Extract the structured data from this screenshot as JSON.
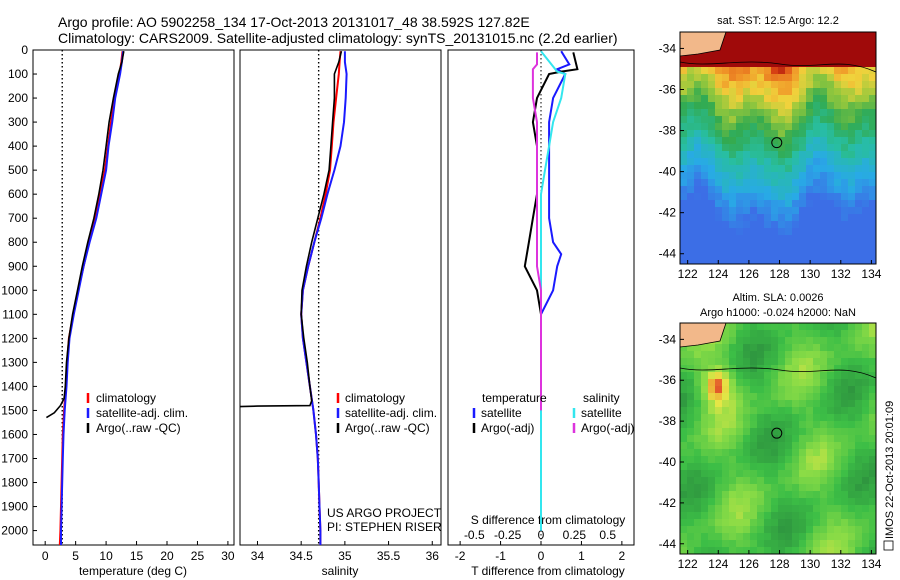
{
  "titles": {
    "line1": "Argo profile: AO 5902258_134 17-Oct-2013 20131017_48 38.592S 127.82E",
    "line2": "Climatology: CARS2009. Satellite-adjusted climatology: synTS_20131015.nc (2.2d earlier)"
  },
  "side_label": "IMOS 22-Oct-2013 20:01:09",
  "colors": {
    "climatology": "#ff0000",
    "satellite": "#1a1aff",
    "argo": "#000000",
    "salinity_sat": "#33e6ee",
    "salinity_argo": "#dd33dd"
  },
  "chart_data": [
    {
      "type": "line",
      "id": "temperature",
      "xlabel": "temperature (deg C)",
      "ylabel": "depth",
      "xlim": [
        -2,
        31
      ],
      "ylim": [
        2060,
        0
      ],
      "x_ticks": [
        0,
        5,
        10,
        15,
        20,
        25,
        30
      ],
      "y_ticks": [
        0,
        100,
        200,
        300,
        400,
        500,
        600,
        700,
        800,
        900,
        1000,
        1100,
        1200,
        1300,
        1400,
        1500,
        1600,
        1700,
        1800,
        1900,
        2000
      ],
      "reference_line": 2.8,
      "legend": [
        "climatology",
        "satellite-adj. clim.",
        "Argo(..raw -QC)"
      ],
      "series": [
        {
          "name": "climatology",
          "color": "#ff0000",
          "points": [
            [
              12.7,
              5
            ],
            [
              12.5,
              50
            ],
            [
              12.2,
              100
            ],
            [
              11.4,
              200
            ],
            [
              10.8,
              300
            ],
            [
              10.3,
              400
            ],
            [
              9.8,
              500
            ],
            [
              9.0,
              600
            ],
            [
              8.2,
              700
            ],
            [
              7.2,
              800
            ],
            [
              6.3,
              900
            ],
            [
              5.4,
              1000
            ],
            [
              4.6,
              1100
            ],
            [
              3.9,
              1200
            ],
            [
              3.6,
              1300
            ],
            [
              3.4,
              1400
            ],
            [
              3.1,
              1500
            ],
            [
              2.9,
              1600
            ],
            [
              2.8,
              1700
            ],
            [
              2.7,
              1800
            ],
            [
              2.6,
              1900
            ],
            [
              2.5,
              2000
            ],
            [
              2.4,
              2060
            ]
          ]
        },
        {
          "name": "satellite",
          "color": "#1a1aff",
          "points": [
            [
              12.8,
              5
            ],
            [
              12.6,
              50
            ],
            [
              12.3,
              100
            ],
            [
              11.5,
              200
            ],
            [
              11.0,
              300
            ],
            [
              10.4,
              400
            ],
            [
              10.0,
              500
            ],
            [
              9.2,
              600
            ],
            [
              8.4,
              700
            ],
            [
              7.3,
              800
            ],
            [
              6.3,
              900
            ],
            [
              5.5,
              1000
            ],
            [
              4.7,
              1100
            ],
            [
              4.0,
              1200
            ],
            [
              3.7,
              1300
            ],
            [
              3.5,
              1400
            ],
            [
              3.2,
              1500
            ],
            [
              3.0,
              1600
            ],
            [
              2.9,
              1700
            ],
            [
              2.8,
              1800
            ],
            [
              2.7,
              1900
            ],
            [
              2.6,
              2000
            ],
            [
              2.6,
              2060
            ]
          ]
        },
        {
          "name": "argo",
          "color": "#000000",
          "points": [
            [
              12.9,
              5
            ],
            [
              12.6,
              50
            ],
            [
              12.0,
              100
            ],
            [
              11.2,
              200
            ],
            [
              10.5,
              300
            ],
            [
              10.0,
              400
            ],
            [
              9.5,
              500
            ],
            [
              8.8,
              600
            ],
            [
              8.0,
              700
            ],
            [
              7.0,
              800
            ],
            [
              6.1,
              900
            ],
            [
              5.3,
              1000
            ],
            [
              4.5,
              1100
            ],
            [
              3.9,
              1200
            ],
            [
              3.5,
              1300
            ],
            [
              3.3,
              1400
            ],
            [
              3.1,
              1450
            ],
            [
              2.5,
              1480
            ],
            [
              1.5,
              1510
            ],
            [
              0.2,
              1530
            ]
          ]
        }
      ]
    },
    {
      "type": "line",
      "id": "salinity",
      "xlabel": "salinity",
      "xlim": [
        33.8,
        36.1
      ],
      "ylim": [
        2060,
        0
      ],
      "x_ticks": [
        34,
        34.5,
        35,
        35.5,
        36
      ],
      "reference_line": 34.7,
      "legend": [
        "climatology",
        "satellite-adj. clim.",
        "Argo(..raw -QC)"
      ],
      "credits": [
        "US ARGO PROJECT",
        "PI: STEPHEN RISER"
      ],
      "series": [
        {
          "name": "climatology",
          "color": "#ff0000",
          "points": [
            [
              34.95,
              5
            ],
            [
              34.94,
              50
            ],
            [
              34.93,
              100
            ],
            [
              34.9,
              200
            ],
            [
              34.87,
              300
            ],
            [
              34.85,
              400
            ],
            [
              34.83,
              500
            ],
            [
              34.78,
              600
            ],
            [
              34.72,
              700
            ],
            [
              34.65,
              800
            ],
            [
              34.58,
              900
            ],
            [
              34.52,
              1000
            ],
            [
              34.5,
              1100
            ],
            [
              34.52,
              1200
            ],
            [
              34.56,
              1300
            ],
            [
              34.6,
              1400
            ],
            [
              34.64,
              1500
            ],
            [
              34.67,
              1600
            ],
            [
              34.69,
              1700
            ],
            [
              34.7,
              1800
            ],
            [
              34.71,
              1900
            ],
            [
              34.72,
              2000
            ],
            [
              34.72,
              2060
            ]
          ]
        },
        {
          "name": "satellite",
          "color": "#1a1aff",
          "points": [
            [
              35.0,
              5
            ],
            [
              35.0,
              50
            ],
            [
              35.02,
              100
            ],
            [
              35.01,
              200
            ],
            [
              34.99,
              300
            ],
            [
              34.95,
              400
            ],
            [
              34.88,
              500
            ],
            [
              34.8,
              600
            ],
            [
              34.73,
              700
            ],
            [
              34.65,
              800
            ],
            [
              34.58,
              900
            ],
            [
              34.52,
              1000
            ],
            [
              34.5,
              1100
            ],
            [
              34.52,
              1200
            ],
            [
              34.56,
              1300
            ],
            [
              34.6,
              1400
            ],
            [
              34.64,
              1500
            ],
            [
              34.67,
              1600
            ],
            [
              34.69,
              1700
            ],
            [
              34.7,
              1800
            ],
            [
              34.71,
              1900
            ],
            [
              34.72,
              2000
            ],
            [
              34.72,
              2060
            ]
          ]
        },
        {
          "name": "argo",
          "color": "#000000",
          "points": [
            [
              34.96,
              5
            ],
            [
              34.93,
              50
            ],
            [
              34.88,
              100
            ],
            [
              34.88,
              200
            ],
            [
              34.86,
              300
            ],
            [
              34.84,
              400
            ],
            [
              34.82,
              500
            ],
            [
              34.76,
              600
            ],
            [
              34.69,
              700
            ],
            [
              34.62,
              800
            ],
            [
              34.56,
              900
            ],
            [
              34.51,
              1000
            ],
            [
              34.5,
              1100
            ],
            [
              34.53,
              1200
            ],
            [
              34.57,
              1300
            ],
            [
              34.6,
              1400
            ],
            [
              34.62,
              1460
            ],
            [
              34.6,
              1480
            ],
            [
              34.0,
              1482
            ],
            [
              33.8,
              1484
            ]
          ]
        }
      ]
    },
    {
      "type": "line",
      "id": "difference",
      "xlabel": "T difference from climatology",
      "x_label_top": "S difference from climatology",
      "xlim": [
        -2.3,
        2.3
      ],
      "ylim": [
        2060,
        0
      ],
      "x_ticks": [
        -2,
        -1,
        0,
        1,
        2
      ],
      "s_ticks": [
        -0.5,
        -0.25,
        0,
        0.25,
        0.5
      ],
      "s_ticks_text": [
        "-0.5",
        "-0.25",
        "0",
        "0.25",
        "0.5"
      ],
      "legend_temperature": [
        "temperature",
        "satellite",
        "Argo(-adj)"
      ],
      "legend_salinity": [
        "salinity",
        "satellite",
        "Argo(-adj)"
      ],
      "series": [
        {
          "name": "T satellite",
          "color": "#1a1aff",
          "points": [
            [
              0.5,
              5
            ],
            [
              0.7,
              60
            ],
            [
              0.4,
              80
            ],
            [
              0.6,
              100
            ],
            [
              0.3,
              200
            ],
            [
              0.2,
              300
            ],
            [
              0.2,
              400
            ],
            [
              0.2,
              500
            ],
            [
              0.2,
              600
            ],
            [
              0.2,
              700
            ],
            [
              0.3,
              800
            ],
            [
              0.5,
              850
            ],
            [
              0.4,
              900
            ],
            [
              0.3,
              1000
            ],
            [
              0.0,
              1100
            ],
            [
              0.0,
              1200
            ],
            [
              0.0,
              1500
            ],
            [
              0.0,
              2000
            ]
          ]
        },
        {
          "name": "T argo",
          "color": "#000000",
          "points": [
            [
              0.8,
              10
            ],
            [
              0.9,
              80
            ],
            [
              0.5,
              90
            ],
            [
              0.2,
              100
            ],
            [
              -0.1,
              200
            ],
            [
              -0.2,
              300
            ],
            [
              -0.1,
              400
            ],
            [
              -0.1,
              500
            ],
            [
              -0.1,
              600
            ],
            [
              -0.2,
              700
            ],
            [
              -0.3,
              800
            ],
            [
              -0.4,
              900
            ],
            [
              -0.1,
              1000
            ],
            [
              0.0,
              1100
            ],
            [
              0.0,
              1200
            ],
            [
              0.0,
              1500
            ]
          ]
        },
        {
          "name": "S satellite",
          "color": "#33e6ee",
          "points": [
            [
              0.0,
              5
            ],
            [
              0.4,
              90
            ],
            [
              0.6,
              100
            ],
            [
              0.5,
              200
            ],
            [
              0.3,
              300
            ],
            [
              0.2,
              400
            ],
            [
              0.1,
              500
            ],
            [
              0.0,
              600
            ],
            [
              0.0,
              700
            ],
            [
              0.0,
              800
            ],
            [
              0.0,
              900
            ],
            [
              0.0,
              1000
            ],
            [
              0.0,
              1100
            ],
            [
              0.0,
              1200
            ],
            [
              0.0,
              1500
            ],
            [
              0.0,
              2000
            ]
          ]
        },
        {
          "name": "S argo",
          "color": "#dd33dd",
          "points": [
            [
              -0.1,
              10
            ],
            [
              -0.1,
              60
            ],
            [
              -0.2,
              80
            ],
            [
              -0.2,
              200
            ],
            [
              -0.1,
              300
            ],
            [
              -0.1,
              400
            ],
            [
              -0.1,
              500
            ],
            [
              -0.1,
              600
            ],
            [
              -0.1,
              700
            ],
            [
              -0.1,
              800
            ],
            [
              -0.1,
              900
            ],
            [
              0.0,
              1000
            ],
            [
              0.0,
              1100
            ],
            [
              0.0,
              1200
            ],
            [
              0.0,
              1500
            ]
          ]
        }
      ]
    },
    {
      "type": "heatmap",
      "id": "sst-map",
      "title": "sat. SST: 12.5  Argo: 12.2",
      "xlim": [
        121.5,
        134.3
      ],
      "ylim": [
        -44.5,
        -33.2
      ],
      "x_ticks": [
        122,
        124,
        126,
        128,
        130,
        132,
        134
      ],
      "y_ticks": [
        -34,
        -36,
        -38,
        -40,
        -42,
        -44
      ],
      "argo_position": [
        127.82,
        -38.59
      ]
    },
    {
      "type": "heatmap",
      "id": "sla-map",
      "title": "Altim. SLA: 0.0026",
      "subtitle": "Argo h1000: -0.024 h2000: NaN",
      "xlim": [
        121.5,
        134.3
      ],
      "ylim": [
        -44.5,
        -33.2
      ],
      "x_ticks": [
        122,
        124,
        126,
        128,
        130,
        132,
        134
      ],
      "y_ticks": [
        -34,
        -36,
        -38,
        -40,
        -42,
        -44
      ],
      "argo_position": [
        127.82,
        -38.59
      ]
    }
  ]
}
